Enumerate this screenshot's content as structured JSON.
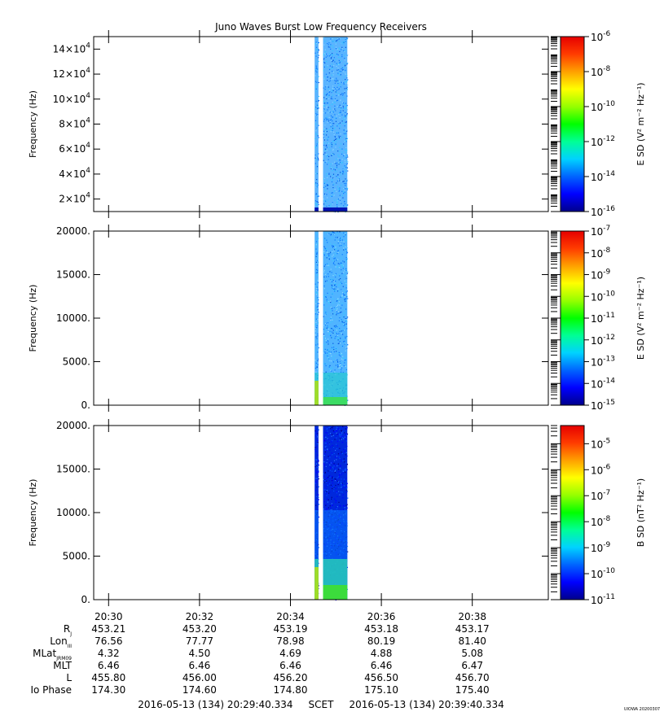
{
  "title": "Juno Waves Burst Low Frequency Receivers",
  "stamp": "UIOWA 20200307",
  "time_axis": {
    "ticks": [
      "20:30",
      "20:32",
      "20:34",
      "20:36",
      "20:38"
    ],
    "start": "20:29:40.334",
    "end": "20:39:40.334",
    "footer": "2016-05-13 (134) 20:29:40.334     SCET     2016-05-13 (134) 20:39:40.334"
  },
  "ephemeris": {
    "labels": [
      "R",
      "Lon",
      "MLat",
      "MLT",
      "L",
      "Io Phase"
    ],
    "subscripts": [
      "J",
      "III",
      "JRM09",
      "",
      "",
      ""
    ],
    "values": [
      [
        "453.21",
        "453.20",
        "453.19",
        "453.18",
        "453.17"
      ],
      [
        "76.56",
        "77.77",
        "78.98",
        "80.19",
        "81.40"
      ],
      [
        "4.32",
        "4.50",
        "4.69",
        "4.88",
        "5.08"
      ],
      [
        "6.46",
        "6.46",
        "6.46",
        "6.46",
        "6.47"
      ],
      [
        "455.80",
        "456.00",
        "456.20",
        "456.50",
        "456.70"
      ],
      [
        "174.30",
        "174.60",
        "174.80",
        "175.10",
        "175.40"
      ]
    ]
  },
  "colors": {
    "colormap": [
      "#00008c",
      "#0000ff",
      "#0064ff",
      "#00d2ff",
      "#00ff96",
      "#00ff00",
      "#96ff00",
      "#ffff00",
      "#ffa000",
      "#ff3c00",
      "#e60000"
    ]
  },
  "chart_data": [
    {
      "type": "heatmap",
      "ylabel": "Frequency (Hz)",
      "ylim": [
        10000,
        150000
      ],
      "yticks": [
        20000,
        40000,
        60000,
        80000,
        100000,
        120000,
        140000
      ],
      "ytick_labels": [
        [
          "2",
          "4"
        ],
        [
          "4",
          "4"
        ],
        [
          "6",
          "4"
        ],
        [
          "8",
          "4"
        ],
        [
          "10",
          "4"
        ],
        [
          "12",
          "4"
        ],
        [
          "14",
          "4"
        ]
      ],
      "colorbar_label": "E SD (V² m⁻² Hz⁻¹)",
      "colorbar_range": [
        -16,
        -6
      ],
      "colorbar_ticks": [
        -16,
        -14,
        -12,
        -10,
        -8,
        -6
      ],
      "data_segments": [
        [
          "20:34:32",
          "20:34:37"
        ],
        [
          "20:34:43",
          "20:35:15"
        ]
      ],
      "dominant_level": "10^-14"
    },
    {
      "type": "heatmap",
      "ylabel": "Frequency (Hz)",
      "ylim": [
        0,
        20000
      ],
      "yticks": [
        0,
        5000,
        10000,
        15000,
        20000
      ],
      "ytick_labels": [
        "0.",
        "5000.",
        "10000.",
        "15000.",
        "20000."
      ],
      "colorbar_label": "E SD (V² m⁻² Hz⁻¹)",
      "colorbar_range": [
        -15,
        -7
      ],
      "colorbar_ticks": [
        -15,
        -14,
        -13,
        -12,
        -11,
        -10,
        -9,
        -8,
        -7
      ],
      "data_segments": [
        [
          "20:34:32",
          "20:34:37"
        ],
        [
          "20:34:43",
          "20:35:15"
        ]
      ],
      "dominant_level": "10^-13"
    },
    {
      "type": "heatmap",
      "ylabel": "Frequency (Hz)",
      "ylim": [
        0,
        20000
      ],
      "yticks": [
        0,
        5000,
        10000,
        15000,
        20000
      ],
      "ytick_labels": [
        "0.",
        "5000.",
        "10000.",
        "15000.",
        "20000."
      ],
      "colorbar_label": "B SD (nT² Hz⁻¹)",
      "colorbar_range": [
        -11,
        -4.3
      ],
      "colorbar_ticks": [
        -11,
        -10,
        -9,
        -8,
        -7,
        -6,
        -5
      ],
      "data_segments": [
        [
          "20:34:32",
          "20:34:37"
        ],
        [
          "20:34:43",
          "20:35:15"
        ]
      ],
      "dominant_level": "10^-10"
    }
  ]
}
